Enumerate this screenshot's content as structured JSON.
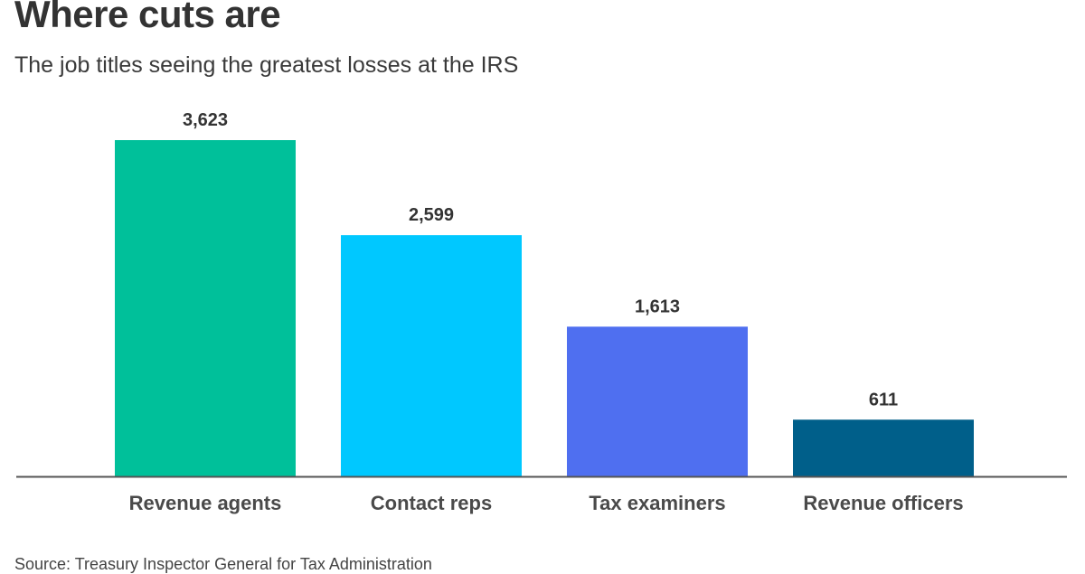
{
  "header": {
    "title": "Where cuts are",
    "subtitle": "The job titles seeing the greatest losses at the IRS"
  },
  "chart_data": {
    "type": "bar",
    "categories": [
      "Revenue agents",
      "Contact reps",
      "Tax examiners",
      "Revenue officers"
    ],
    "values": [
      3623,
      2599,
      1613,
      611
    ],
    "value_labels": [
      "3,623",
      "2,599",
      "1,613",
      "611"
    ],
    "colors": [
      "#00c09a",
      "#00c8ff",
      "#4f6ff0",
      "#005f8a"
    ],
    "ylim": [
      0,
      3623
    ],
    "grid": false,
    "legend": "none"
  },
  "footer": {
    "source": "Source: Treasury Inspector General for Tax Administration"
  }
}
